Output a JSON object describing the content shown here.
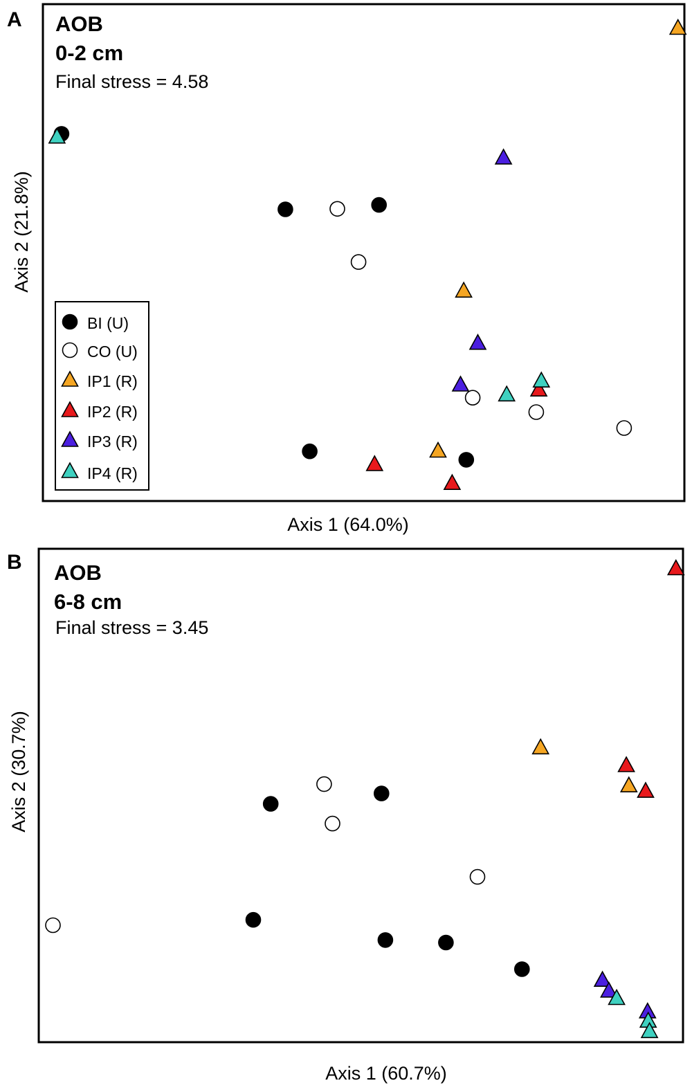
{
  "legend": [
    {
      "label": "BI (U)",
      "key": "BI"
    },
    {
      "label": "CO (U)",
      "key": "CO"
    },
    {
      "label": "IP1 (R)",
      "key": "IP1"
    },
    {
      "label": "IP2 (R)",
      "key": "IP2"
    },
    {
      "label": "IP3 (R)",
      "key": "IP3"
    },
    {
      "label": "IP4 (R)",
      "key": "IP4"
    }
  ],
  "styles": {
    "BI": {
      "shape": "circle",
      "fill": "#000000"
    },
    "CO": {
      "shape": "circle",
      "fill": "#ffffff"
    },
    "IP1": {
      "shape": "triangle",
      "fill": "#f5a623"
    },
    "IP2": {
      "shape": "triangle",
      "fill": "#e8191c"
    },
    "IP3": {
      "shape": "triangle",
      "fill": "#4b1fe0"
    },
    "IP4": {
      "shape": "triangle",
      "fill": "#3fd1c0"
    }
  },
  "chart_data": [
    {
      "type": "scatter",
      "panel": "A",
      "title": "AOB",
      "subtitle": "0-2 cm",
      "annotation": "Final stress = 4.58",
      "xlabel": "Axis 1 (64.0%)",
      "ylabel": "Axis 2 (21.8%)",
      "xlim": [
        0,
        100
      ],
      "ylim": [
        0,
        100
      ],
      "grid": false,
      "legend_position": "bottom-left",
      "series": [
        {
          "name": "BI (U)",
          "key": "BI",
          "points": [
            [
              2.9,
              73.9
            ],
            [
              37.8,
              58.7
            ],
            [
              52.4,
              59.6
            ],
            [
              41.6,
              10.0
            ],
            [
              66.0,
              8.3
            ]
          ]
        },
        {
          "name": "CO (U)",
          "key": "CO",
          "points": [
            [
              45.9,
              58.8
            ],
            [
              49.2,
              48.1
            ],
            [
              67.0,
              20.8
            ],
            [
              76.9,
              17.9
            ],
            [
              90.6,
              14.7
            ]
          ]
        },
        {
          "name": "IP1 (R)",
          "key": "IP1",
          "points": [
            [
              99.0,
              95.2
            ],
            [
              65.6,
              42.3
            ],
            [
              61.6,
              10.1
            ]
          ]
        },
        {
          "name": "IP2 (R)",
          "key": "IP2",
          "points": [
            [
              51.7,
              7.4
            ],
            [
              63.8,
              3.6
            ],
            [
              77.3,
              22.4
            ]
          ]
        },
        {
          "name": "IP3 (R)",
          "key": "IP3",
          "points": [
            [
              71.8,
              69.1
            ],
            [
              67.8,
              31.8
            ],
            [
              65.1,
              23.4
            ]
          ]
        },
        {
          "name": "IP4 (R)",
          "key": "IP4",
          "points": [
            [
              2.2,
              73.3
            ],
            [
              77.7,
              24.2
            ],
            [
              72.3,
              21.4
            ]
          ]
        }
      ]
    },
    {
      "type": "scatter",
      "panel": "B",
      "title": "AOB",
      "subtitle": "6-8 cm",
      "annotation": "Final stress = 3.45",
      "xlabel": "Axis 1 (60.7%)",
      "ylabel": "Axis 2 (30.7%)",
      "xlim": [
        0,
        100
      ],
      "ylim": [
        0,
        100
      ],
      "grid": false,
      "series": [
        {
          "name": "BI (U)",
          "key": "BI",
          "points": [
            [
              36.0,
              48.3
            ],
            [
              53.2,
              50.4
            ],
            [
              33.3,
              24.8
            ],
            [
              53.8,
              20.7
            ],
            [
              63.2,
              20.2
            ],
            [
              75.0,
              14.8
            ]
          ]
        },
        {
          "name": "CO (U)",
          "key": "CO",
          "points": [
            [
              44.3,
              52.3
            ],
            [
              45.6,
              44.3
            ],
            [
              68.1,
              33.5
            ],
            [
              2.2,
              23.7
            ]
          ]
        },
        {
          "name": "IP1 (R)",
          "key": "IP1",
          "points": [
            [
              77.9,
              59.7
            ],
            [
              91.6,
              52.0
            ]
          ]
        },
        {
          "name": "IP2 (R)",
          "key": "IP2",
          "points": [
            [
              98.9,
              96.0
            ],
            [
              91.2,
              56.1
            ],
            [
              94.2,
              50.9
            ]
          ]
        },
        {
          "name": "IP3 (R)",
          "key": "IP3",
          "points": [
            [
              87.5,
              12.6
            ],
            [
              88.5,
              10.4
            ],
            [
              94.5,
              6.2
            ]
          ]
        },
        {
          "name": "IP4 (R)",
          "key": "IP4",
          "points": [
            [
              89.7,
              8.9
            ],
            [
              94.6,
              4.3
            ],
            [
              94.8,
              2.2
            ]
          ]
        }
      ]
    }
  ]
}
